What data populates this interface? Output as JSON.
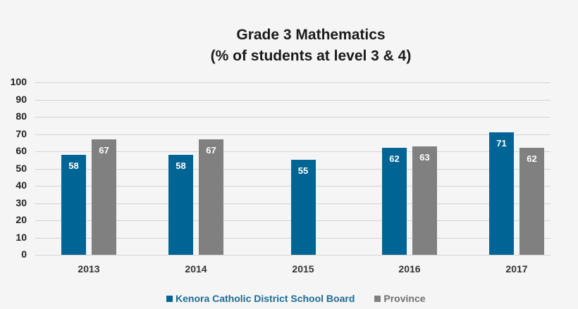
{
  "chart_data": {
    "type": "bar",
    "title": "Grade 3 Mathematics",
    "subtitle": "(% of students at level 3 & 4)",
    "categories": [
      "2013",
      "2014",
      "2015",
      "2016",
      "2017"
    ],
    "series": [
      {
        "name": "Kenora Catholic District School Board",
        "color": "#006494",
        "values": [
          58,
          58,
          55,
          62,
          71
        ]
      },
      {
        "name": "Province",
        "color": "#808080",
        "values": [
          67,
          67,
          null,
          63,
          62
        ]
      }
    ],
    "xlabel": "",
    "ylabel": "",
    "ylim": [
      0,
      100
    ],
    "yticks": [
      0,
      10,
      20,
      30,
      40,
      50,
      60,
      70,
      80,
      90,
      100
    ],
    "grid": true,
    "legend_position": "bottom"
  }
}
